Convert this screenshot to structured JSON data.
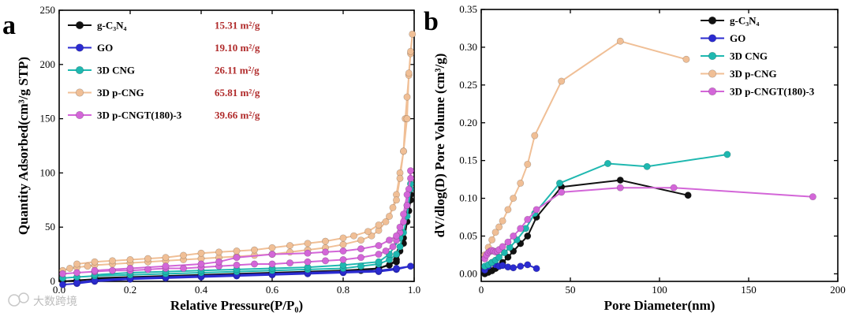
{
  "chart_data": [
    {
      "type": "line",
      "panel": "a",
      "xlabel": "Relative Pressure(P/P₀)",
      "ylabel": "Quantity Adsorbed(cm³/g STP)",
      "xlim": [
        0,
        1.0
      ],
      "ylim": [
        0,
        250
      ],
      "xticks": [
        "0.0",
        "0.2",
        "0.4",
        "0.6",
        "0.8",
        "1.0"
      ],
      "yticks": [
        "0",
        "50",
        "100",
        "150",
        "200",
        "250"
      ],
      "legend_position": "top-left",
      "series": [
        {
          "name": "g-C₃N₄",
          "bet": "15.31 m²/g",
          "color": "#111111",
          "x": [
            0.01,
            0.05,
            0.1,
            0.2,
            0.3,
            0.4,
            0.5,
            0.6,
            0.7,
            0.8,
            0.85,
            0.9,
            0.93,
            0.95,
            0.96,
            0.97,
            0.98,
            0.985,
            0.99,
            0.99,
            0.97,
            0.95,
            0.9,
            0.8,
            0.7,
            0.6,
            0.5,
            0.4,
            0.3,
            0.2,
            0.1
          ],
          "y": [
            0,
            1,
            2,
            3,
            4,
            5,
            6,
            7,
            8,
            9,
            10,
            12,
            15,
            20,
            28,
            40,
            55,
            65,
            80,
            75,
            35,
            18,
            12,
            10,
            9,
            8,
            7,
            6,
            5,
            4,
            3
          ]
        },
        {
          "name": "GO",
          "bet": "19.10 m²/g",
          "color": "#2b2bd0",
          "x": [
            0.01,
            0.05,
            0.1,
            0.2,
            0.3,
            0.4,
            0.5,
            0.6,
            0.7,
            0.8,
            0.9,
            0.95,
            0.99,
            0.95,
            0.9,
            0.8,
            0.7,
            0.6,
            0.5,
            0.4,
            0.3,
            0.2,
            0.1,
            0.05
          ],
          "y": [
            -3,
            -2,
            0,
            2,
            3,
            4,
            5,
            6,
            7,
            8,
            9,
            11,
            14,
            12,
            10,
            9,
            8,
            7,
            6,
            5,
            4,
            3,
            1,
            -1
          ]
        },
        {
          "name": "3D CNG",
          "bet": "26.11 m²/g",
          "color": "#1fb8b0",
          "x": [
            0.01,
            0.05,
            0.1,
            0.2,
            0.3,
            0.4,
            0.5,
            0.6,
            0.7,
            0.8,
            0.85,
            0.9,
            0.93,
            0.95,
            0.96,
            0.97,
            0.98,
            0.99,
            0.99,
            0.98,
            0.96,
            0.93,
            0.9,
            0.8,
            0.7,
            0.6,
            0.5,
            0.4,
            0.3,
            0.2,
            0.1
          ],
          "y": [
            3,
            4,
            5,
            6,
            7,
            8,
            9,
            10,
            11,
            12,
            14,
            16,
            20,
            25,
            32,
            45,
            60,
            85,
            90,
            70,
            40,
            25,
            18,
            15,
            13,
            12,
            11,
            10,
            9,
            8,
            6
          ]
        },
        {
          "name": "3D p-CNG",
          "bet": "65.81 m²/g",
          "color": "#f0bf96",
          "x": [
            0.01,
            0.03,
            0.05,
            0.08,
            0.1,
            0.15,
            0.2,
            0.25,
            0.3,
            0.35,
            0.4,
            0.45,
            0.5,
            0.55,
            0.6,
            0.65,
            0.7,
            0.75,
            0.8,
            0.85,
            0.88,
            0.9,
            0.92,
            0.94,
            0.95,
            0.96,
            0.97,
            0.975,
            0.98,
            0.985,
            0.99,
            0.995,
            0.99,
            0.985,
            0.98,
            0.97,
            0.96,
            0.95,
            0.93,
            0.9,
            0.87,
            0.83,
            0.8,
            0.75,
            0.7,
            0.65,
            0.6,
            0.55,
            0.5,
            0.45,
            0.4,
            0.35,
            0.3,
            0.25,
            0.2,
            0.15,
            0.1,
            0.05
          ],
          "y": [
            10,
            12,
            13,
            14,
            15,
            16,
            17,
            18,
            19,
            20,
            21,
            22,
            23,
            24,
            25,
            27,
            29,
            31,
            34,
            38,
            42,
            47,
            55,
            68,
            80,
            100,
            120,
            150,
            170,
            190,
            210,
            228,
            212,
            192,
            150,
            120,
            95,
            75,
            60,
            52,
            46,
            42,
            40,
            37,
            35,
            33,
            31,
            29,
            28,
            27,
            26,
            24,
            22,
            21,
            20,
            19,
            18,
            16
          ]
        },
        {
          "name": "3D p-CNGT(180)-3",
          "bet": "39.66 m²/g",
          "color": "#d366d8",
          "x": [
            0.01,
            0.05,
            0.1,
            0.15,
            0.2,
            0.25,
            0.3,
            0.35,
            0.4,
            0.45,
            0.5,
            0.55,
            0.6,
            0.65,
            0.7,
            0.75,
            0.8,
            0.85,
            0.9,
            0.92,
            0.94,
            0.95,
            0.96,
            0.97,
            0.98,
            0.985,
            0.99,
            0.99,
            0.98,
            0.97,
            0.96,
            0.95,
            0.93,
            0.9,
            0.85,
            0.8,
            0.75,
            0.7,
            0.6,
            0.5,
            0.45,
            0.4,
            0.3,
            0.2,
            0.1
          ],
          "y": [
            7,
            8,
            9,
            10,
            10,
            11,
            12,
            12,
            13,
            14,
            15,
            16,
            16,
            17,
            18,
            19,
            20,
            22,
            25,
            28,
            32,
            38,
            45,
            55,
            70,
            85,
            102,
            95,
            80,
            62,
            50,
            42,
            38,
            33,
            30,
            28,
            27,
            26,
            25,
            22,
            18,
            16,
            14,
            12,
            10
          ]
        }
      ]
    },
    {
      "type": "line",
      "panel": "b",
      "xlabel": "Pore Diameter(nm)",
      "ylabel": "dV/dlog(D) Pore Volume (cm³/g)",
      "xlim": [
        0,
        200
      ],
      "ylim": [
        -0.01,
        0.35
      ],
      "xticks": [
        "0",
        "50",
        "100",
        "150",
        "200"
      ],
      "yticks": [
        "0.00",
        "0.05",
        "0.10",
        "0.15",
        "0.20",
        "0.25",
        "0.30",
        "0.35"
      ],
      "legend_position": "top-right",
      "series": [
        {
          "name": "g-C₃N₄",
          "color": "#111111",
          "x": [
            2,
            4,
            6,
            8,
            10,
            12,
            15,
            18,
            22,
            26,
            31,
            45,
            78,
            116
          ],
          "y": [
            0.0,
            0.002,
            0.004,
            0.007,
            0.01,
            0.015,
            0.022,
            0.03,
            0.04,
            0.05,
            0.075,
            0.115,
            0.124,
            0.104
          ]
        },
        {
          "name": "GO",
          "color": "#2b2bd0",
          "x": [
            2,
            4,
            6,
            8,
            10,
            12,
            15,
            18,
            22,
            26,
            31
          ],
          "y": [
            0.005,
            0.01,
            0.015,
            0.012,
            0.01,
            0.011,
            0.009,
            0.008,
            0.01,
            0.012,
            0.007
          ]
        },
        {
          "name": "3D CNG",
          "color": "#1fb8b0",
          "x": [
            2,
            4,
            6,
            8,
            10,
            13,
            16,
            20,
            25,
            30,
            44,
            71,
            93,
            138
          ],
          "y": [
            0.01,
            0.012,
            0.015,
            0.018,
            0.022,
            0.028,
            0.035,
            0.045,
            0.06,
            0.08,
            0.12,
            0.146,
            0.142,
            0.158
          ]
        },
        {
          "name": "3D p-CNG",
          "color": "#f0bf96",
          "x": [
            2,
            4,
            6,
            8,
            10,
            12,
            15,
            18,
            22,
            26,
            30,
            45,
            78,
            115
          ],
          "y": [
            0.025,
            0.035,
            0.045,
            0.055,
            0.062,
            0.07,
            0.085,
            0.1,
            0.12,
            0.145,
            0.183,
            0.255,
            0.308,
            0.284
          ]
        },
        {
          "name": "3D p-CNGT(180)-3",
          "color": "#d366d8",
          "x": [
            2,
            3,
            4,
            5,
            6,
            7,
            8,
            9,
            10,
            12,
            15,
            18,
            22,
            26,
            31,
            45,
            78,
            108,
            186
          ],
          "y": [
            0.02,
            0.025,
            0.028,
            0.03,
            0.031,
            0.03,
            0.029,
            0.03,
            0.032,
            0.036,
            0.042,
            0.05,
            0.06,
            0.072,
            0.085,
            0.108,
            0.114,
            0.114,
            0.102
          ]
        }
      ]
    }
  ],
  "watermark": "大数跨境"
}
